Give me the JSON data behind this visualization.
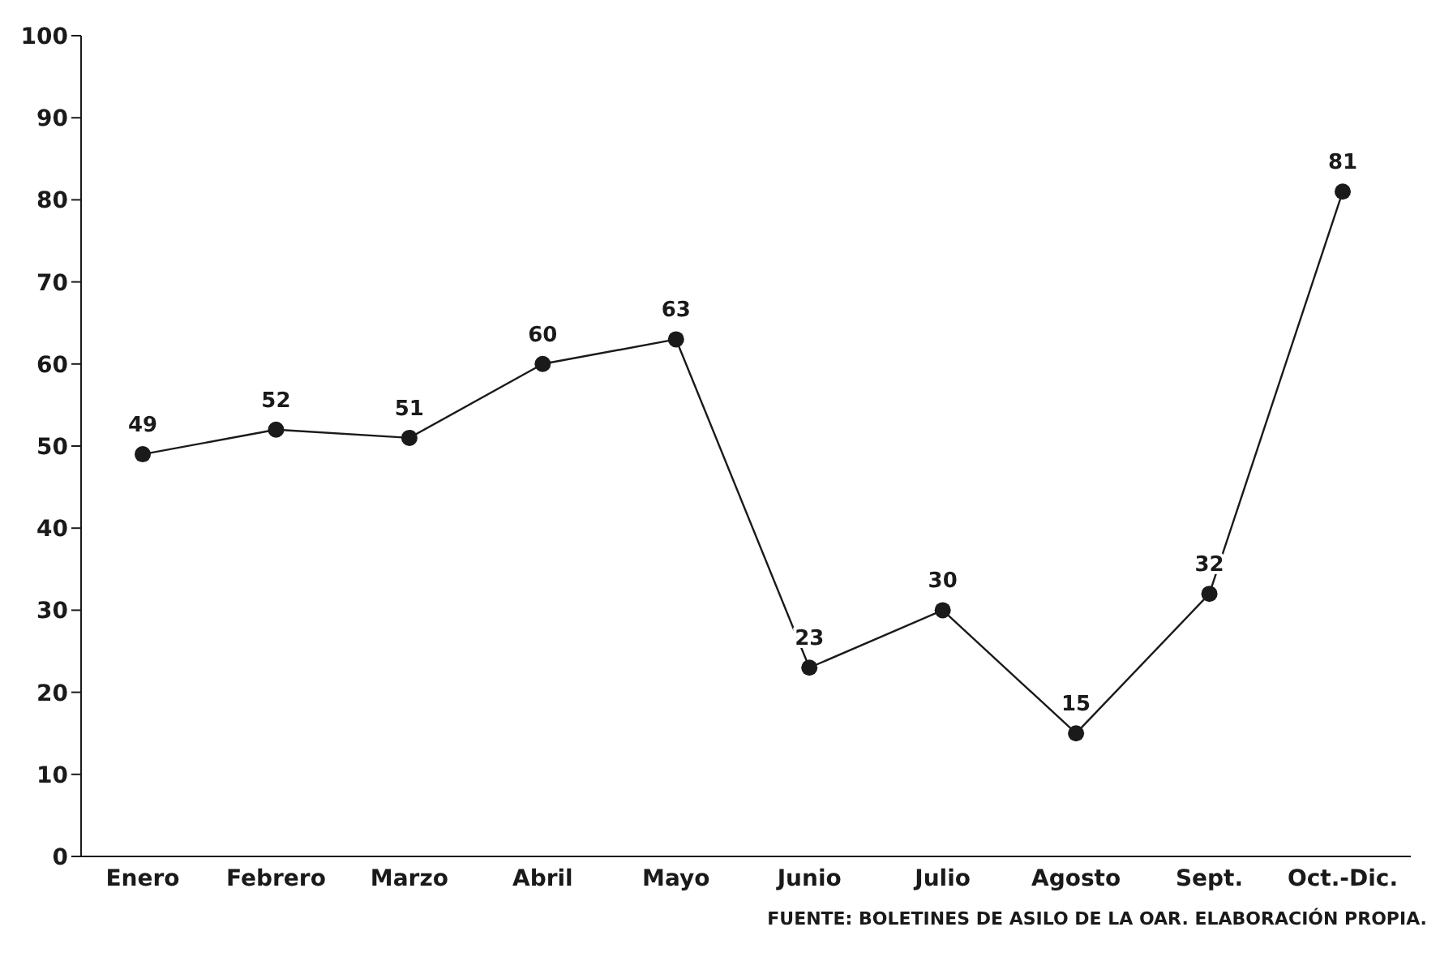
{
  "chart_data": {
    "type": "line",
    "categories": [
      "Enero",
      "Febrero",
      "Marzo",
      "Abril",
      "Mayo",
      "Junio",
      "Julio",
      "Agosto",
      "Sept.",
      "Oct.-Dic."
    ],
    "series": [
      {
        "color": "#1a1a1a",
        "values": [
          49,
          52,
          51,
          60,
          63,
          23,
          30,
          15,
          32,
          81
        ]
      }
    ],
    "ylim": [
      0,
      100
    ],
    "yticks": [
      0,
      10,
      20,
      30,
      40,
      50,
      60,
      70,
      80,
      90,
      100
    ],
    "grid": false,
    "legend": false,
    "marker": "circle",
    "line_style": "solid",
    "data_labels": true,
    "annotations": [
      "FUENTE: BOLETINES DE ASILO DE LA OAR. ELABORACIÓN PROPIA."
    ]
  }
}
